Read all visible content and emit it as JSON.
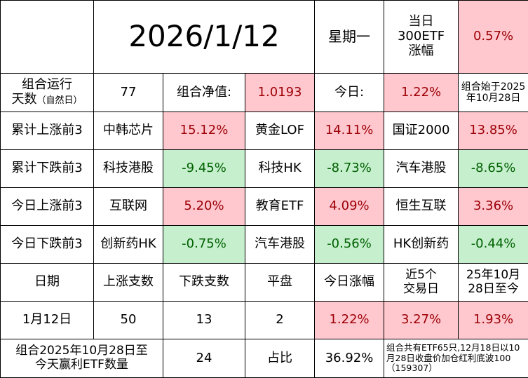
{
  "header": {
    "date": "2026/1/12",
    "weekday": "星期一",
    "idx_label_1": "当日",
    "idx_label_2": "300ETF",
    "idx_label_3": "涨幅",
    "idx_value": "0.57%"
  },
  "row2": {
    "run_label_1": "组合运行",
    "run_label_2": "天数",
    "run_label_small": "（自然日）",
    "run_days": "77",
    "nav_label": "组合净值:",
    "nav_value": "1.0193",
    "today_label": "今日:",
    "today_value": "1.22%",
    "start_1": "组合始于2025",
    "start_2": "年10月28日"
  },
  "ranks": [
    {
      "label": "累计上涨前3",
      "items": [
        [
          "中韩芯片",
          "15.12%"
        ],
        [
          "黄金LOF",
          "14.11%"
        ],
        [
          "国证2000",
          "13.85%"
        ]
      ]
    },
    {
      "label": "累计下跌前3",
      "items": [
        [
          "科技港股",
          "-9.45%"
        ],
        [
          "科技HK",
          "-8.73%"
        ],
        [
          "汽车港股",
          "-8.65%"
        ]
      ]
    },
    {
      "label": "今日上涨前3",
      "items": [
        [
          "互联网",
          "5.20%"
        ],
        [
          "教育ETF",
          "4.09%"
        ],
        [
          "恒生互联",
          "3.36%"
        ]
      ]
    },
    {
      "label": "今日下跌前3",
      "items": [
        [
          "创新药HK",
          "-0.75%"
        ],
        [
          "汽车港股",
          "-0.56%"
        ],
        [
          "HK创新药",
          "-0.44%"
        ]
      ]
    }
  ],
  "stats_header": {
    "date": "日期",
    "up": "上涨支数",
    "down": "下跌支数",
    "flat": "平盘",
    "today": "今日涨幅",
    "five_1": "近5个",
    "five_2": "交易日",
    "since_1": "25年10月",
    "since_2": "28日至今"
  },
  "stats_row": {
    "date": "1月12日",
    "up": "50",
    "down": "13",
    "flat": "2",
    "today": "1.22%",
    "five": "3.27%",
    "since": "1.93%"
  },
  "footer": {
    "label_1": "组合2025年10月28日至",
    "label_2": "今天赢利ETF数量",
    "count": "24",
    "ratio_label": "占比",
    "ratio": "36.92%",
    "note": "组合共有ETF65只,12月18日以10月28日收盘价加仓红利底波100（159307）"
  }
}
